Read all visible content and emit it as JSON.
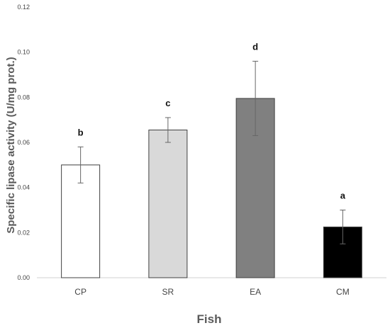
{
  "chart_data": {
    "type": "bar",
    "title": "",
    "xlabel": "Fish",
    "ylabel": "Specific lipase activity (U/mg prot.)",
    "ylim": [
      0,
      0.12
    ],
    "yticks": [
      "0.00",
      "0.02",
      "0.04",
      "0.06",
      "0.08",
      "0.10",
      "0.12"
    ],
    "grid": false,
    "categories": [
      "CP",
      "SR",
      "EA",
      "CM"
    ],
    "values": [
      0.05,
      0.0655,
      0.0795,
      0.0225
    ],
    "errors": [
      0.008,
      0.0055,
      0.0165,
      0.0075
    ],
    "significance": [
      "b",
      "c",
      "d",
      "a"
    ],
    "colors": [
      "#ffffff",
      "#d9d9d9",
      "#808080",
      "#000000"
    ],
    "edge_color": "#404040"
  }
}
